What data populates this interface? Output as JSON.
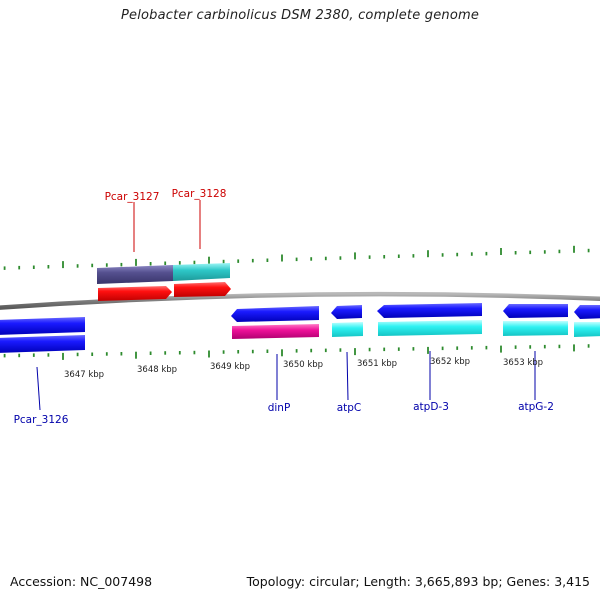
{
  "title": "Pelobacter carbinolicus DSM 2380, complete genome",
  "footer": {
    "accession": "Accession: NC_007498",
    "summary": "Topology: circular; Length: 3,665,893 bp; Genes: 3,415"
  },
  "scale_labels": [
    "3647 kbp",
    "3648 kbp",
    "3649 kbp",
    "3650 kbp",
    "3651 kbp",
    "3652 kbp",
    "3653 kbp"
  ],
  "gene_labels": {
    "top": [
      "Pcar_3127",
      "Pcar_3128"
    ],
    "bottom": [
      "Pcar_3126",
      "dinP",
      "atpC",
      "atpD-3",
      "atpG-2"
    ]
  },
  "colors": {
    "backbone": "#808080",
    "ticks": "#2e8b2e",
    "forward_gene": "#ff0000",
    "forward_label": "#cc0000",
    "reverse_gene": "#0000ee",
    "reverse_label": "#0000aa",
    "cog_purple": "#55508f",
    "cog_cyan": "#2ec8c8",
    "cog_light_cyan": "#2ef0f0",
    "cog_magenta": "#ee1199"
  }
}
